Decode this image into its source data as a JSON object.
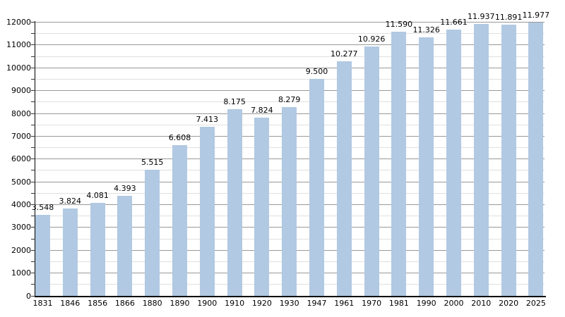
{
  "chart_data": {
    "type": "bar",
    "title": "",
    "xlabel": "",
    "ylabel": "",
    "categories": [
      "1831",
      "1846",
      "1856",
      "1866",
      "1880",
      "1890",
      "1900",
      "1910",
      "1920",
      "1930",
      "1947",
      "1961",
      "1970",
      "1981",
      "1990",
      "2000",
      "2010",
      "2020",
      "2025"
    ],
    "values": [
      3548,
      3824,
      4081,
      4393,
      5515,
      6608,
      7413,
      8175,
      7824,
      8279,
      9500,
      10277,
      10926,
      11590,
      11326,
      11661,
      11937,
      11891,
      11977
    ],
    "bar_value_labels": [
      "3.548",
      "3.824",
      "4.081",
      "4.393",
      "5.515",
      "6.608",
      "7.413",
      "8.175",
      "7.824",
      "8.279",
      "9.500",
      "10.277",
      "10.926",
      "11.590",
      "11.326",
      "11.661",
      "11.937",
      "11.891",
      "11.977"
    ],
    "y_axis": {
      "min": 0,
      "max": 12000,
      "major_step": 1000,
      "minor_step": 500,
      "tick_labels": [
        "0",
        "1000",
        "2000",
        "3000",
        "4000",
        "5000",
        "6000",
        "7000",
        "8000",
        "9000",
        "10000",
        "11000",
        "12000"
      ]
    },
    "grid": {
      "horizontal_major": true,
      "horizontal_minor": true,
      "vertical": false
    },
    "legend": {
      "visible": false
    },
    "colors": {
      "bar_fill": "#B1C9E2",
      "grid_major": "#999999",
      "grid_minor": "#E0E0E0",
      "axis": "#000000",
      "tick": "#333333",
      "text": "#000000",
      "background": "#FFFFFF"
    }
  }
}
